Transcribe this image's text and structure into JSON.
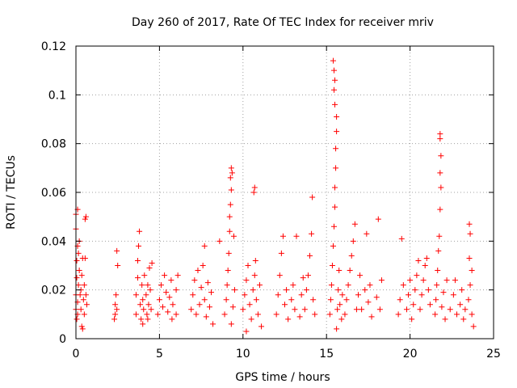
{
  "chart_data": {
    "type": "scatter",
    "title": "Day 260 of 2017, Rate Of TEC Index for receiver mriv",
    "xlabel": "GPS time / hours",
    "ylabel": "ROTI / TECUs",
    "xlim": [
      0,
      25
    ],
    "ylim": [
      0,
      0.12
    ],
    "x_ticks": [
      "0",
      "5",
      "10",
      "15",
      "20",
      "25"
    ],
    "y_ticks": [
      "0",
      "0.02",
      "0.04",
      "0.06",
      "0.08",
      "0.1",
      "0.12"
    ],
    "x_tick_values": [
      0,
      5,
      10,
      15,
      20,
      25
    ],
    "y_tick_values": [
      0,
      0.02,
      0.04,
      0.06,
      0.07999999999999999,
      0.1,
      0.12
    ],
    "grid": true,
    "marker": "+",
    "series_color": "#ff0000",
    "series": [
      {
        "name": "ROTI",
        "points": [
          [
            0.0,
            0.012
          ],
          [
            0.0,
            0.018
          ],
          [
            0.05,
            0.025
          ],
          [
            0.05,
            0.032
          ],
          [
            0.1,
            0.038
          ],
          [
            0.0,
            0.045
          ],
          [
            0.0,
            0.051
          ],
          [
            0.1,
            0.053
          ],
          [
            0.05,
            0.008
          ],
          [
            0.1,
            0.015
          ],
          [
            0.15,
            0.022
          ],
          [
            0.2,
            0.028
          ],
          [
            0.15,
            0.035
          ],
          [
            0.2,
            0.04
          ],
          [
            0.1,
            0.01
          ],
          [
            0.25,
            0.018
          ],
          [
            0.3,
            0.012
          ],
          [
            0.3,
            0.02
          ],
          [
            0.35,
            0.026
          ],
          [
            0.4,
            0.033
          ],
          [
            0.35,
            0.005
          ],
          [
            0.45,
            0.016
          ],
          [
            0.5,
            0.022
          ],
          [
            0.55,
            0.049
          ],
          [
            0.6,
            0.05
          ],
          [
            0.5,
            0.01
          ],
          [
            0.6,
            0.018
          ],
          [
            0.65,
            0.014
          ],
          [
            0.55,
            0.033
          ],
          [
            0.4,
            0.004
          ],
          [
            2.3,
            0.008
          ],
          [
            2.35,
            0.014
          ],
          [
            2.4,
            0.018
          ],
          [
            2.45,
            0.012
          ],
          [
            2.5,
            0.03
          ],
          [
            2.45,
            0.036
          ],
          [
            2.35,
            0.01
          ],
          [
            3.6,
            0.01
          ],
          [
            3.6,
            0.018
          ],
          [
            3.7,
            0.025
          ],
          [
            3.75,
            0.038
          ],
          [
            3.8,
            0.044
          ],
          [
            3.85,
            0.014
          ],
          [
            3.9,
            0.008
          ],
          [
            3.95,
            0.022
          ],
          [
            4.0,
            0.016
          ],
          [
            4.05,
            0.012
          ],
          [
            4.1,
            0.026
          ],
          [
            4.2,
            0.018
          ],
          [
            4.25,
            0.01
          ],
          [
            4.3,
            0.022
          ],
          [
            4.35,
            0.014
          ],
          [
            4.4,
            0.029
          ],
          [
            4.45,
            0.02
          ],
          [
            4.5,
            0.012
          ],
          [
            4.55,
            0.031
          ],
          [
            3.7,
            0.032
          ],
          [
            4.0,
            0.006
          ],
          [
            4.3,
            0.008
          ],
          [
            4.9,
            0.01
          ],
          [
            5.0,
            0.016
          ],
          [
            5.1,
            0.022
          ],
          [
            5.2,
            0.013
          ],
          [
            5.3,
            0.026
          ],
          [
            5.4,
            0.019
          ],
          [
            5.5,
            0.011
          ],
          [
            5.6,
            0.017
          ],
          [
            5.7,
            0.024
          ],
          [
            5.75,
            0.008
          ],
          [
            5.8,
            0.014
          ],
          [
            6.0,
            0.02
          ],
          [
            6.1,
            0.026
          ],
          [
            6.0,
            0.01
          ],
          [
            6.9,
            0.012
          ],
          [
            7.0,
            0.018
          ],
          [
            7.1,
            0.024
          ],
          [
            7.2,
            0.01
          ],
          [
            7.3,
            0.028
          ],
          [
            7.4,
            0.014
          ],
          [
            7.5,
            0.021
          ],
          [
            7.6,
            0.03
          ],
          [
            7.7,
            0.016
          ],
          [
            7.8,
            0.009
          ],
          [
            7.9,
            0.023
          ],
          [
            8.0,
            0.013
          ],
          [
            8.1,
            0.019
          ],
          [
            8.2,
            0.006
          ],
          [
            7.7,
            0.038
          ],
          [
            8.6,
            0.04
          ],
          [
            8.9,
            0.01
          ],
          [
            9.0,
            0.016
          ],
          [
            9.05,
            0.022
          ],
          [
            9.1,
            0.028
          ],
          [
            9.15,
            0.035
          ],
          [
            9.2,
            0.044
          ],
          [
            9.2,
            0.05
          ],
          [
            9.25,
            0.055
          ],
          [
            9.3,
            0.061
          ],
          [
            9.25,
            0.066
          ],
          [
            9.3,
            0.07
          ],
          [
            9.35,
            0.068
          ],
          [
            9.4,
            0.013
          ],
          [
            9.5,
            0.02
          ],
          [
            9.45,
            0.042
          ],
          [
            9.3,
            0.006
          ],
          [
            10.0,
            0.012
          ],
          [
            10.1,
            0.018
          ],
          [
            10.2,
            0.024
          ],
          [
            10.3,
            0.03
          ],
          [
            10.4,
            0.014
          ],
          [
            10.5,
            0.008
          ],
          [
            10.6,
            0.02
          ],
          [
            10.7,
            0.026
          ],
          [
            10.75,
            0.032
          ],
          [
            10.8,
            0.016
          ],
          [
            10.9,
            0.01
          ],
          [
            11.0,
            0.022
          ],
          [
            10.7,
            0.062
          ],
          [
            10.65,
            0.06
          ],
          [
            11.1,
            0.005
          ],
          [
            10.2,
            0.003
          ],
          [
            12.0,
            0.01
          ],
          [
            12.1,
            0.018
          ],
          [
            12.2,
            0.026
          ],
          [
            12.3,
            0.035
          ],
          [
            12.4,
            0.042
          ],
          [
            12.5,
            0.014
          ],
          [
            12.6,
            0.02
          ],
          [
            12.7,
            0.008
          ],
          [
            12.9,
            0.016
          ],
          [
            13.0,
            0.022
          ],
          [
            13.1,
            0.012
          ],
          [
            13.2,
            0.042
          ],
          [
            13.4,
            0.009
          ],
          [
            13.5,
            0.018
          ],
          [
            13.6,
            0.025
          ],
          [
            13.7,
            0.012
          ],
          [
            13.8,
            0.02
          ],
          [
            13.9,
            0.026
          ],
          [
            14.0,
            0.034
          ],
          [
            14.1,
            0.043
          ],
          [
            14.15,
            0.058
          ],
          [
            14.2,
            0.016
          ],
          [
            14.3,
            0.01
          ],
          [
            15.2,
            0.01
          ],
          [
            15.25,
            0.016
          ],
          [
            15.3,
            0.022
          ],
          [
            15.35,
            0.03
          ],
          [
            15.4,
            0.038
          ],
          [
            15.45,
            0.046
          ],
          [
            15.5,
            0.054
          ],
          [
            15.5,
            0.062
          ],
          [
            15.55,
            0.07
          ],
          [
            15.55,
            0.078
          ],
          [
            15.6,
            0.085
          ],
          [
            15.6,
            0.091
          ],
          [
            15.5,
            0.096
          ],
          [
            15.45,
            0.102
          ],
          [
            15.5,
            0.106
          ],
          [
            15.45,
            0.11
          ],
          [
            15.4,
            0.114
          ],
          [
            15.6,
            0.004
          ],
          [
            15.65,
            0.012
          ],
          [
            15.7,
            0.02
          ],
          [
            15.75,
            0.028
          ],
          [
            15.8,
            0.014
          ],
          [
            15.9,
            0.008
          ],
          [
            15.95,
            0.018
          ],
          [
            16.1,
            0.01
          ],
          [
            16.2,
            0.016
          ],
          [
            16.3,
            0.022
          ],
          [
            16.4,
            0.028
          ],
          [
            16.5,
            0.034
          ],
          [
            16.6,
            0.04
          ],
          [
            16.7,
            0.047
          ],
          [
            16.8,
            0.012
          ],
          [
            16.9,
            0.018
          ],
          [
            17.0,
            0.026
          ],
          [
            17.1,
            0.012
          ],
          [
            17.3,
            0.02
          ],
          [
            17.4,
            0.043
          ],
          [
            17.5,
            0.015
          ],
          [
            17.6,
            0.022
          ],
          [
            17.7,
            0.009
          ],
          [
            18.0,
            0.017
          ],
          [
            18.1,
            0.049
          ],
          [
            18.2,
            0.012
          ],
          [
            18.3,
            0.024
          ],
          [
            19.3,
            0.01
          ],
          [
            19.4,
            0.016
          ],
          [
            19.5,
            0.041
          ],
          [
            19.6,
            0.022
          ],
          [
            19.8,
            0.012
          ],
          [
            19.9,
            0.018
          ],
          [
            20.0,
            0.024
          ],
          [
            20.1,
            0.008
          ],
          [
            20.2,
            0.014
          ],
          [
            20.3,
            0.02
          ],
          [
            20.4,
            0.026
          ],
          [
            20.5,
            0.032
          ],
          [
            20.6,
            0.012
          ],
          [
            20.7,
            0.018
          ],
          [
            20.8,
            0.024
          ],
          [
            20.9,
            0.03
          ],
          [
            21.0,
            0.033
          ],
          [
            21.1,
            0.02
          ],
          [
            21.2,
            0.014
          ],
          [
            21.5,
            0.01
          ],
          [
            21.55,
            0.016
          ],
          [
            21.6,
            0.022
          ],
          [
            21.65,
            0.028
          ],
          [
            21.7,
            0.036
          ],
          [
            21.75,
            0.042
          ],
          [
            21.8,
            0.053
          ],
          [
            21.85,
            0.062
          ],
          [
            21.8,
            0.068
          ],
          [
            21.85,
            0.075
          ],
          [
            21.8,
            0.082
          ],
          [
            21.8,
            0.084
          ],
          [
            21.9,
            0.013
          ],
          [
            22.0,
            0.019
          ],
          [
            22.1,
            0.008
          ],
          [
            22.2,
            0.024
          ],
          [
            22.4,
            0.012
          ],
          [
            22.6,
            0.018
          ],
          [
            22.7,
            0.024
          ],
          [
            22.8,
            0.01
          ],
          [
            23.0,
            0.014
          ],
          [
            23.1,
            0.02
          ],
          [
            23.2,
            0.008
          ],
          [
            23.3,
            0.012
          ],
          [
            23.5,
            0.016
          ],
          [
            23.6,
            0.022
          ],
          [
            23.7,
            0.028
          ],
          [
            23.55,
            0.033
          ],
          [
            23.6,
            0.043
          ],
          [
            23.55,
            0.047
          ],
          [
            23.7,
            0.01
          ],
          [
            23.8,
            0.005
          ]
        ]
      }
    ]
  }
}
